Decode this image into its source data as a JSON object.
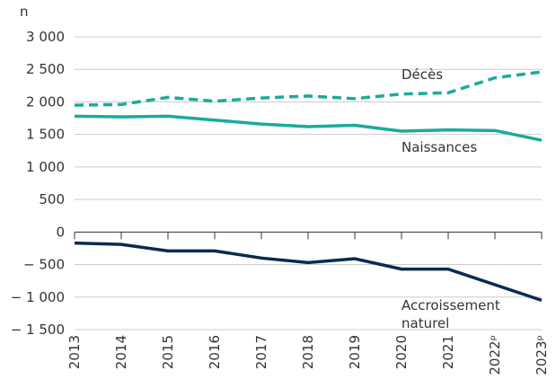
{
  "chart_data": {
    "type": "line",
    "y_label": "n",
    "categories": [
      "2013",
      "2014",
      "2015",
      "2016",
      "2017",
      "2018",
      "2019",
      "2020",
      "2021",
      "2022ᵖ",
      "2023ᵖ"
    ],
    "series": [
      {
        "name": "Décès",
        "color": "#1aab9b",
        "dashed": true,
        "values": [
          1950,
          1960,
          2070,
          2010,
          2060,
          2090,
          2050,
          2120,
          2140,
          2370,
          2460
        ]
      },
      {
        "name": "Naissances",
        "color": "#1aab9b",
        "dashed": false,
        "values": [
          1780,
          1770,
          1780,
          1720,
          1660,
          1620,
          1640,
          1550,
          1570,
          1560,
          1410
        ]
      },
      {
        "name": "Accroissement naturel",
        "color": "#0c2a4d",
        "dashed": false,
        "values": [
          -170,
          -190,
          -290,
          -290,
          -400,
          -470,
          -410,
          -570,
          -570,
          -810,
          -1050
        ]
      }
    ],
    "ylim": [
      -1500,
      3000
    ],
    "yticks": [
      {
        "value": -1500,
        "label": "− 1 500"
      },
      {
        "value": -1000,
        "label": "− 1 000"
      },
      {
        "value": -500,
        "label": "− 500"
      },
      0,
      500,
      {
        "value": 1000,
        "label": "1 000"
      },
      {
        "value": 1500,
        "label": "1 500"
      },
      {
        "value": 2000,
        "label": "2 000"
      },
      {
        "value": 2500,
        "label": "2 500"
      },
      {
        "value": 3000,
        "label": "3 000"
      }
    ],
    "grid": true
  }
}
